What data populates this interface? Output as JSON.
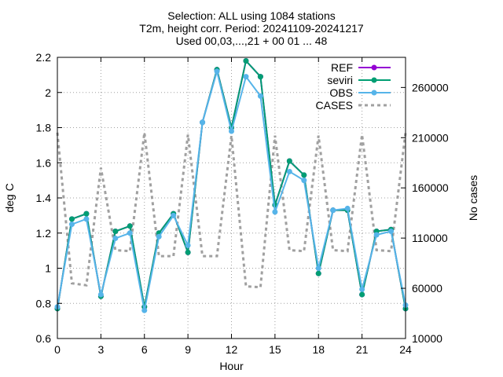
{
  "title_lines": [
    "Selection: ALL using  1084 stations",
    "T2m, height corr.   Period: 20241109-20241217",
    "Used 00,03,...,21 + 00 01 ... 48"
  ],
  "colors": {
    "REF": "#9400d3",
    "seviri": "#009e73",
    "OBS": "#56b4e9",
    "CASES": "#a0a0a0"
  },
  "chart_data": {
    "type": "line",
    "xlabel": "Hour",
    "ylabel": "deg C",
    "y2label": "No cases",
    "xlim": [
      0,
      24
    ],
    "ylim": [
      0.6,
      2.2
    ],
    "y2lim": [
      10000,
      290000
    ],
    "xticks": [
      0,
      3,
      6,
      9,
      12,
      15,
      18,
      21,
      24
    ],
    "yticks": [
      0.6,
      0.8,
      1,
      1.2,
      1.4,
      1.6,
      1.8,
      2,
      2.2
    ],
    "ytick_labels": [
      "0.6",
      "0.8",
      "1",
      "1.2",
      "1.4",
      "1.6",
      "1.8",
      "2",
      "2.2"
    ],
    "y2ticks": [
      10000,
      60000,
      110000,
      160000,
      210000,
      260000
    ],
    "y2tick_labels": [
      "10000",
      "60000",
      "110000",
      "160000",
      "210000",
      "260000"
    ],
    "grid": true,
    "legend_position": "top-right",
    "x": [
      0,
      1,
      2,
      3,
      4,
      5,
      6,
      7,
      8,
      9,
      10,
      11,
      12,
      13,
      14,
      15,
      16,
      17,
      18,
      19,
      20,
      21,
      22,
      23,
      24
    ],
    "series": [
      {
        "name": "REF",
        "axis": "y1",
        "style": "line-points",
        "values": [
          0.77,
          1.28,
          1.31,
          0.84,
          1.21,
          1.24,
          0.78,
          1.2,
          1.31,
          1.09,
          1.83,
          2.13,
          1.8,
          2.18,
          2.09,
          1.36,
          1.61,
          1.53,
          0.97,
          1.33,
          1.33,
          0.85,
          1.21,
          1.22,
          0.77
        ]
      },
      {
        "name": "seviri",
        "axis": "y1",
        "style": "line-points",
        "values": [
          0.77,
          1.28,
          1.31,
          0.84,
          1.21,
          1.24,
          0.78,
          1.2,
          1.31,
          1.09,
          1.83,
          2.13,
          1.8,
          2.18,
          2.09,
          1.36,
          1.61,
          1.53,
          0.97,
          1.33,
          1.33,
          0.85,
          1.21,
          1.22,
          0.77
        ]
      },
      {
        "name": "OBS",
        "axis": "y1",
        "style": "line-points",
        "values": [
          0.78,
          1.25,
          1.28,
          0.85,
          1.17,
          1.2,
          0.76,
          1.18,
          1.3,
          1.13,
          1.83,
          2.12,
          1.78,
          2.09,
          1.98,
          1.32,
          1.55,
          1.5,
          1.0,
          1.33,
          1.34,
          0.88,
          1.19,
          1.21,
          0.79
        ]
      },
      {
        "name": "CASES",
        "axis": "y2",
        "style": "dashed",
        "values": [
          215000,
          65000,
          63000,
          180000,
          98000,
          97000,
          215000,
          92000,
          92000,
          213000,
          92000,
          92000,
          212000,
          62000,
          61000,
          212000,
          98000,
          97000,
          212000,
          98000,
          97000,
          213000,
          98000,
          97000,
          215000
        ]
      }
    ]
  }
}
